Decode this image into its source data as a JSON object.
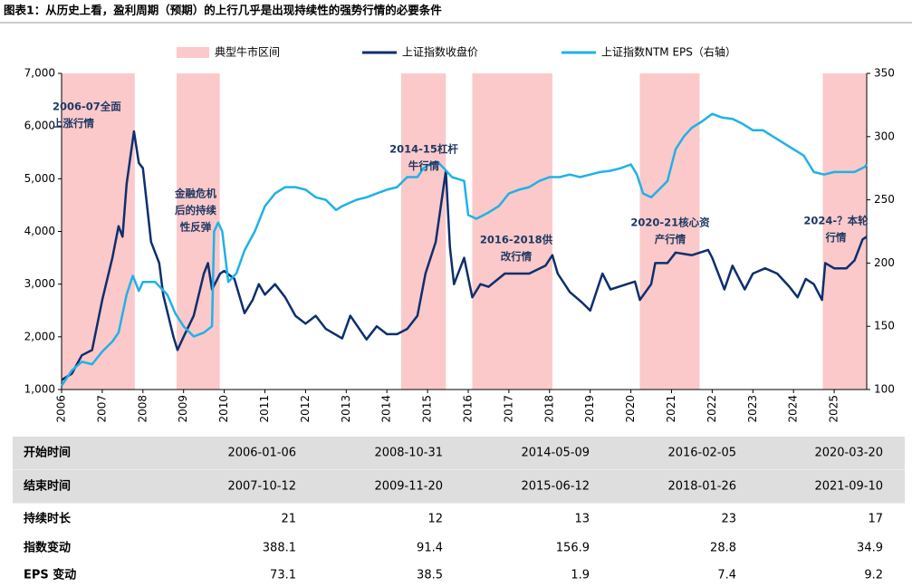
{
  "chart_data": {
    "type": "line",
    "title": "图表1：从历史上看，盈利周期（预期）的上行几乎是出现持续性的强势行情的必要条件",
    "bands": {
      "name": "典型牛市区间",
      "color": "#fbc9c9",
      "ranges": [
        [
          2006.0,
          2007.8
        ],
        [
          2008.83,
          2009.89
        ],
        [
          2014.35,
          2015.45
        ],
        [
          2016.1,
          2018.07
        ],
        [
          2020.22,
          2021.69
        ],
        [
          2024.72,
          2025.8
        ]
      ]
    },
    "series": [
      {
        "name": "上证指数收盘价",
        "color": "#0d2f6e",
        "axis": "y",
        "x": [
          2006.0,
          2006.25,
          2006.5,
          2006.75,
          2007.0,
          2007.25,
          2007.4,
          2007.5,
          2007.6,
          2007.78,
          2007.9,
          2008.0,
          2008.2,
          2008.4,
          2008.5,
          2008.75,
          2008.85,
          2009.0,
          2009.25,
          2009.5,
          2009.6,
          2009.7,
          2009.9,
          2010.0,
          2010.25,
          2010.5,
          2010.7,
          2010.85,
          2011.0,
          2011.25,
          2011.5,
          2011.75,
          2012.0,
          2012.25,
          2012.5,
          2012.9,
          2013.1,
          2013.5,
          2013.75,
          2014.0,
          2014.25,
          2014.5,
          2014.75,
          2014.95,
          2015.2,
          2015.45,
          2015.55,
          2015.65,
          2015.9,
          2016.1,
          2016.3,
          2016.5,
          2016.9,
          2017.3,
          2017.5,
          2017.9,
          2018.07,
          2018.2,
          2018.5,
          2018.8,
          2019.0,
          2019.3,
          2019.5,
          2019.9,
          2020.1,
          2020.22,
          2020.5,
          2020.6,
          2020.9,
          2021.1,
          2021.5,
          2021.7,
          2021.9,
          2022.0,
          2022.3,
          2022.5,
          2022.8,
          2023.0,
          2023.3,
          2023.6,
          2023.9,
          2024.1,
          2024.3,
          2024.5,
          2024.7,
          2024.78,
          2025.0,
          2025.3,
          2025.5,
          2025.7,
          2025.8
        ],
        "values": [
          1180,
          1300,
          1650,
          1750,
          2700,
          3500,
          4100,
          3900,
          4900,
          5900,
          5300,
          5200,
          3800,
          3400,
          2800,
          2000,
          1750,
          2000,
          2400,
          3200,
          3400,
          2900,
          3200,
          3250,
          3100,
          2450,
          2700,
          3000,
          2800,
          3000,
          2750,
          2400,
          2250,
          2400,
          2150,
          1970,
          2400,
          1950,
          2200,
          2050,
          2050,
          2150,
          2400,
          3200,
          3800,
          5150,
          3700,
          3000,
          3500,
          2750,
          3000,
          2950,
          3200,
          3200,
          3200,
          3350,
          3550,
          3200,
          2850,
          2650,
          2500,
          3200,
          2900,
          3000,
          3050,
          2700,
          3000,
          3400,
          3400,
          3600,
          3550,
          3600,
          3650,
          3500,
          2900,
          3350,
          2900,
          3200,
          3300,
          3200,
          2950,
          2750,
          3100,
          3000,
          2700,
          3400,
          3300,
          3300,
          3450,
          3850,
          3900
        ]
      },
      {
        "name": "上证指数NTM EPS（右轴）",
        "color": "#1fb2e6",
        "axis": "y2",
        "x": [
          2006.0,
          2006.25,
          2006.5,
          2006.75,
          2007.0,
          2007.25,
          2007.4,
          2007.6,
          2007.75,
          2007.9,
          2008.0,
          2008.3,
          2008.6,
          2008.8,
          2009.0,
          2009.25,
          2009.5,
          2009.7,
          2009.75,
          2009.85,
          2009.95,
          2010.1,
          2010.3,
          2010.5,
          2010.75,
          2011.0,
          2011.25,
          2011.5,
          2011.75,
          2012.0,
          2012.25,
          2012.5,
          2012.75,
          2012.9,
          2013.25,
          2013.5,
          2013.75,
          2014.0,
          2014.25,
          2014.5,
          2014.75,
          2014.9,
          2015.0,
          2015.25,
          2015.4,
          2015.6,
          2015.9,
          2016.0,
          2016.2,
          2016.5,
          2016.75,
          2017.0,
          2017.25,
          2017.5,
          2017.75,
          2018.0,
          2018.25,
          2018.5,
          2018.75,
          2019.0,
          2019.25,
          2019.5,
          2019.75,
          2020.0,
          2020.15,
          2020.3,
          2020.5,
          2020.75,
          2020.9,
          2021.1,
          2021.3,
          2021.5,
          2021.75,
          2022.0,
          2022.25,
          2022.5,
          2022.75,
          2023.0,
          2023.25,
          2023.5,
          2023.75,
          2024.0,
          2024.25,
          2024.5,
          2024.75,
          2025.0,
          2025.25,
          2025.5,
          2025.75,
          2025.8
        ],
        "values": [
          103,
          115,
          122,
          120,
          130,
          138,
          145,
          175,
          190,
          178,
          185,
          185,
          175,
          160,
          150,
          142,
          145,
          150,
          225,
          232,
          225,
          185,
          192,
          210,
          225,
          245,
          255,
          260,
          260,
          258,
          252,
          250,
          242,
          245,
          250,
          252,
          255,
          258,
          260,
          268,
          268,
          275,
          277,
          280,
          275,
          268,
          265,
          238,
          235,
          240,
          245,
          255,
          258,
          260,
          265,
          268,
          268,
          270,
          268,
          270,
          272,
          273,
          275,
          278,
          270,
          255,
          252,
          260,
          265,
          290,
          300,
          307,
          312,
          318,
          315,
          314,
          310,
          305,
          305,
          300,
          295,
          290,
          285,
          272,
          270,
          272,
          272,
          272,
          276,
          278
        ]
      }
    ],
    "xlim": [
      2006,
      2025.8
    ],
    "xticks": [
      2006,
      2007,
      2008,
      2009,
      2010,
      2011,
      2012,
      2013,
      2014,
      2015,
      2016,
      2017,
      2018,
      2019,
      2020,
      2021,
      2022,
      2023,
      2024,
      2025
    ],
    "ylim": [
      1000,
      7000
    ],
    "yticks": [
      {
        "value": 1000,
        "label": "1,000"
      },
      {
        "value": 2000,
        "label": "2,000"
      },
      {
        "value": 3000,
        "label": "3,000"
      },
      {
        "value": 4000,
        "label": "4,000"
      },
      {
        "value": 5000,
        "label": "5,000"
      },
      {
        "value": 6000,
        "label": "6,000"
      },
      {
        "value": 7000,
        "label": "7,000"
      }
    ],
    "y2lim": [
      100,
      350
    ],
    "y2ticks": [
      100,
      150,
      200,
      250,
      300,
      350
    ],
    "annotations": [
      [
        "2006-07全面",
        "上涨行情"
      ],
      [
        "金融危机",
        "后的持续",
        "性反弹"
      ],
      [
        "2014-15杠杆",
        "牛行情"
      ],
      [
        "2016-2018供",
        "改行情"
      ],
      [
        "2020-21核心资",
        "产行情"
      ],
      [
        "2024-？本轮",
        "行情"
      ]
    ]
  },
  "table": {
    "header_rows": [
      [
        "开始时间",
        "2006-01-06",
        "2008-10-31",
        "2014-05-09",
        "2016-02-05",
        "2020-03-20"
      ],
      [
        "结束时间",
        "2007-10-12",
        "2009-11-20",
        "2015-06-12",
        "2018-01-26",
        "2021-09-10"
      ]
    ],
    "rows": [
      [
        "持续时长",
        "21",
        "12",
        "13",
        "23",
        "17"
      ],
      [
        "指数变动",
        "388.1",
        "91.4",
        "156.9",
        "28.8",
        "34.9"
      ],
      [
        "EPS 变动",
        "73.1",
        "38.5",
        "1.9",
        "7.4",
        "9.2"
      ]
    ]
  }
}
